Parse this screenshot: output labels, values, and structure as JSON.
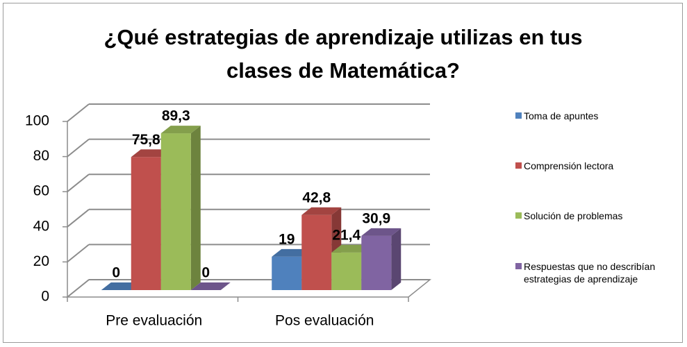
{
  "chart_data": {
    "type": "bar3d",
    "title": "¿Qué estrategias de aprendizaje utilizas en tus clases de Matemática?",
    "categories": [
      "Pre evaluación",
      "Pos evaluación"
    ],
    "series": [
      {
        "name": "Toma de apuntes",
        "color": "#4f81bd",
        "values": [
          0,
          19
        ],
        "value_labels": [
          "0",
          "19"
        ]
      },
      {
        "name": "Comprensión lectora",
        "color": "#c0504d",
        "values": [
          75.8,
          42.8
        ],
        "value_labels": [
          "75,8",
          "42,8"
        ]
      },
      {
        "name": "Solución de problemas",
        "color": "#9bbb59",
        "values": [
          89.3,
          21.4
        ],
        "value_labels": [
          "89,3",
          "21,4"
        ]
      },
      {
        "name": "Respuestas que no describían estrategias de aprendizaje",
        "color": "#8064a2",
        "values": [
          0,
          30.9
        ],
        "value_labels": [
          "0",
          "30,9"
        ]
      }
    ],
    "ylim": [
      0,
      100
    ],
    "yticks": [
      0,
      20,
      40,
      60,
      80,
      100
    ],
    "grid": true,
    "legend": "right"
  }
}
